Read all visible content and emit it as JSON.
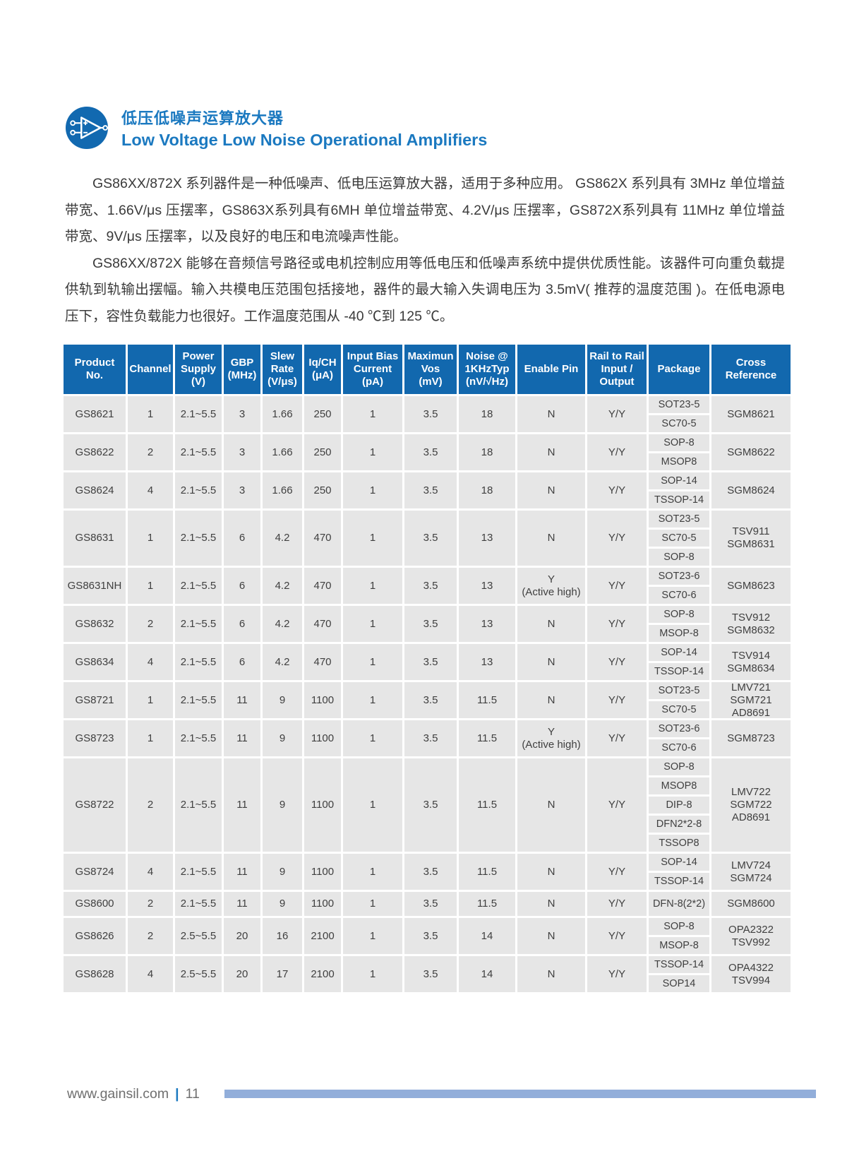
{
  "colors": {
    "accent_blue": "#1b79c0",
    "header_blue": "#1268ae",
    "cell_gray": "#e6e6e6",
    "bar_blue": "#92aeda"
  },
  "header": {
    "icon": "opamp-icon",
    "title_cn": "低压低噪声运算放大器",
    "title_en": "Low Voltage Low Noise Operational Amplifiers"
  },
  "paragraphs": [
    "GS86XX/872X 系列器件是一种低噪声、低电压运算放大器，适用于多种应用。 GS862X 系列具有 3MHz 单位增益带宽、1.66V/μs 压摆率，GS863X系列具有6MH 单位增益带宽、4.2V/μs 压摆率，GS872X系列具有 11MHz 单位增益带宽、9V/μs 压摆率，以及良好的电压和电流噪声性能。",
    "GS86XX/872X 能够在音频信号路径或电机控制应用等低电压和低噪声系统中提供优质性能。该器件可向重负载提供轨到轨输出摆幅。输入共模电压范围包括接地，器件的最大输入失调电压为 3.5mV( 推荐的温度范围 )。在低电源电压下，容性负载能力也很好。工作温度范围从 -40 ℃到 125 ℃。"
  ],
  "table": {
    "columns": [
      {
        "key": "product",
        "label": "Product\nNo."
      },
      {
        "key": "channel",
        "label": "Channel"
      },
      {
        "key": "supply",
        "label": "Power\nSupply\n(V)"
      },
      {
        "key": "gbp",
        "label": "GBP\n(MHz)"
      },
      {
        "key": "slew",
        "label": "Slew\nRate\n(V/μs)"
      },
      {
        "key": "iq",
        "label": "Iq/CH\n(μA)"
      },
      {
        "key": "bias",
        "label": "Input Bias\nCurrent\n(pA)"
      },
      {
        "key": "vos",
        "label": "Maximun\nVos\n(mV)"
      },
      {
        "key": "noise",
        "label": "Noise @\n1KHzTyp\n(nV/√Hz)"
      },
      {
        "key": "enable",
        "label": "Enable Pin"
      },
      {
        "key": "rail",
        "label": "Rail to Rail\nInput /\nOutput"
      },
      {
        "key": "packages",
        "label": "Package"
      },
      {
        "key": "cross",
        "label": "Cross\nReference"
      }
    ],
    "rows": [
      {
        "product": "GS8621",
        "channel": "1",
        "supply": "2.1~5.5",
        "gbp": "3",
        "slew": "1.66",
        "iq": "250",
        "bias": "1",
        "vos": "3.5",
        "noise": "18",
        "enable": "N",
        "rail": "Y/Y",
        "packages": [
          "SOT23-5",
          "SC70-5"
        ],
        "cross": "SGM8621"
      },
      {
        "product": "GS8622",
        "channel": "2",
        "supply": "2.1~5.5",
        "gbp": "3",
        "slew": "1.66",
        "iq": "250",
        "bias": "1",
        "vos": "3.5",
        "noise": "18",
        "enable": "N",
        "rail": "Y/Y",
        "packages": [
          "SOP-8",
          "MSOP8"
        ],
        "cross": "SGM8622"
      },
      {
        "product": "GS8624",
        "channel": "4",
        "supply": "2.1~5.5",
        "gbp": "3",
        "slew": "1.66",
        "iq": "250",
        "bias": "1",
        "vos": "3.5",
        "noise": "18",
        "enable": "N",
        "rail": "Y/Y",
        "packages": [
          "SOP-14",
          "TSSOP-14"
        ],
        "cross": "SGM8624"
      },
      {
        "product": "GS8631",
        "channel": "1",
        "supply": "2.1~5.5",
        "gbp": "6",
        "slew": "4.2",
        "iq": "470",
        "bias": "1",
        "vos": "3.5",
        "noise": "13",
        "enable": "N",
        "rail": "Y/Y",
        "packages": [
          "SOT23-5",
          "SC70-5",
          "SOP-8"
        ],
        "cross": "TSV911\nSGM8631"
      },
      {
        "product": "GS8631NH",
        "channel": "1",
        "supply": "2.1~5.5",
        "gbp": "6",
        "slew": "4.2",
        "iq": "470",
        "bias": "1",
        "vos": "3.5",
        "noise": "13",
        "enable": "Y\n(Active high)",
        "rail": "Y/Y",
        "packages": [
          "SOT23-6",
          "SC70-6"
        ],
        "cross": "SGM8623"
      },
      {
        "product": "GS8632",
        "channel": "2",
        "supply": "2.1~5.5",
        "gbp": "6",
        "slew": "4.2",
        "iq": "470",
        "bias": "1",
        "vos": "3.5",
        "noise": "13",
        "enable": "N",
        "rail": "Y/Y",
        "packages": [
          "SOP-8",
          "MSOP-8"
        ],
        "cross": "TSV912\nSGM8632"
      },
      {
        "product": "GS8634",
        "channel": "4",
        "supply": "2.1~5.5",
        "gbp": "6",
        "slew": "4.2",
        "iq": "470",
        "bias": "1",
        "vos": "3.5",
        "noise": "13",
        "enable": "N",
        "rail": "Y/Y",
        "packages": [
          "SOP-14",
          "TSSOP-14"
        ],
        "cross": "TSV914\nSGM8634"
      },
      {
        "product": "GS8721",
        "channel": "1",
        "supply": "2.1~5.5",
        "gbp": "11",
        "slew": "9",
        "iq": "1100",
        "bias": "1",
        "vos": "3.5",
        "noise": "11.5",
        "enable": "N",
        "rail": "Y/Y",
        "packages": [
          "SOT23-5",
          "SC70-5"
        ],
        "cross": "LMV721\nSGM721\nAD8691"
      },
      {
        "product": "GS8723",
        "channel": "1",
        "supply": "2.1~5.5",
        "gbp": "11",
        "slew": "9",
        "iq": "1100",
        "bias": "1",
        "vos": "3.5",
        "noise": "11.5",
        "enable": "Y\n(Active high)",
        "rail": "Y/Y",
        "packages": [
          "SOT23-6",
          "SC70-6"
        ],
        "cross": "SGM8723"
      },
      {
        "product": "GS8722",
        "channel": "2",
        "supply": "2.1~5.5",
        "gbp": "11",
        "slew": "9",
        "iq": "1100",
        "bias": "1",
        "vos": "3.5",
        "noise": "11.5",
        "enable": "N",
        "rail": "Y/Y",
        "packages": [
          "SOP-8",
          "MSOP8",
          "DIP-8",
          "DFN2*2-8",
          "TSSOP8"
        ],
        "cross": "LMV722\nSGM722\nAD8691"
      },
      {
        "product": "GS8724",
        "channel": "4",
        "supply": "2.1~5.5",
        "gbp": "11",
        "slew": "9",
        "iq": "1100",
        "bias": "1",
        "vos": "3.5",
        "noise": "11.5",
        "enable": "N",
        "rail": "Y/Y",
        "packages": [
          "SOP-14",
          "TSSOP-14"
        ],
        "cross": "LMV724\nSGM724"
      },
      {
        "product": "GS8600",
        "channel": "2",
        "supply": "2.1~5.5",
        "gbp": "11",
        "slew": "9",
        "iq": "1100",
        "bias": "1",
        "vos": "3.5",
        "noise": "11.5",
        "enable": "N",
        "rail": "Y/Y",
        "packages": [
          "DFN-8(2*2)"
        ],
        "cross": "SGM8600"
      },
      {
        "product": "GS8626",
        "channel": "2",
        "supply": "2.5~5.5",
        "gbp": "20",
        "slew": "16",
        "iq": "2100",
        "bias": "1",
        "vos": "3.5",
        "noise": "14",
        "enable": "N",
        "rail": "Y/Y",
        "packages": [
          "SOP-8",
          "MSOP-8"
        ],
        "cross": "OPA2322\nTSV992"
      },
      {
        "product": "GS8628",
        "channel": "4",
        "supply": "2.5~5.5",
        "gbp": "20",
        "slew": "17",
        "iq": "2100",
        "bias": "1",
        "vos": "3.5",
        "noise": "14",
        "enable": "N",
        "rail": "Y/Y",
        "packages": [
          "TSSOP-14",
          "SOP14"
        ],
        "cross": "OPA4322\nTSV994"
      }
    ]
  },
  "footer": {
    "url": "www.gainsil.com",
    "separator": "|",
    "page_number": "11"
  }
}
